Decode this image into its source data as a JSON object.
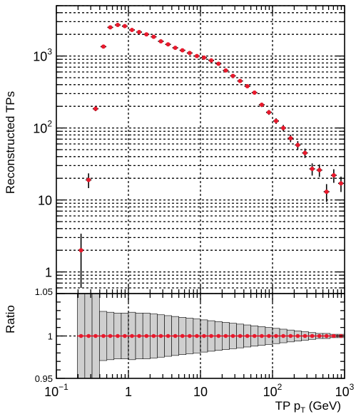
{
  "chart_data": [
    {
      "type": "scatter",
      "xlabel_main": "TP p",
      "xlabel_sub": "T",
      "xlabel_unit": " (GeV)",
      "ylabel": "Reconstructed TPs",
      "xscale": "log",
      "yscale": "log",
      "xlim": [
        0.1,
        1000
      ],
      "ylim": [
        0.5,
        5000
      ],
      "grid": true,
      "ytick_labels": [
        {
          "base": "1",
          "exp": ""
        },
        {
          "base": "10",
          "exp": ""
        },
        {
          "base": "10",
          "exp": "2"
        },
        {
          "base": "10",
          "exp": "3"
        }
      ],
      "series": [
        {
          "color": "#e8192c",
          "x": [
            0.22,
            0.28,
            0.35,
            0.45,
            0.56,
            0.71,
            0.89,
            1.12,
            1.41,
            1.78,
            2.24,
            2.82,
            3.55,
            4.47,
            5.62,
            7.08,
            8.91,
            11.2,
            14.1,
            17.8,
            22.4,
            28.2,
            35.5,
            44.7,
            56.2,
            70.8,
            89.1,
            112,
            141,
            178,
            224,
            282,
            355,
            447,
            562,
            708,
            891
          ],
          "y": [
            2,
            19,
            185,
            1350,
            2500,
            2700,
            2600,
            2300,
            2150,
            2000,
            1850,
            1600,
            1450,
            1300,
            1200,
            1100,
            1000,
            950,
            870,
            780,
            630,
            530,
            450,
            380,
            310,
            210,
            165,
            125,
            100,
            72,
            58,
            45,
            27,
            26,
            13,
            22,
            17
          ],
          "yerr": [
            1.4,
            4.4,
            13.6,
            36.7,
            50,
            52,
            51,
            48,
            46,
            45,
            43,
            40,
            38,
            36,
            35,
            33,
            32,
            31,
            29,
            28,
            25,
            23,
            21,
            19,
            18,
            14.5,
            12.8,
            11.2,
            10,
            8.5,
            7.6,
            6.7,
            5.2,
            5.1,
            3.6,
            4.7,
            4.1
          ]
        }
      ]
    },
    {
      "type": "scatter",
      "ylabel": "Ratio",
      "xscale": "log",
      "ylim": [
        0.95,
        1.05
      ],
      "ytick_labels": [
        "0.95",
        "1",
        "1.05"
      ],
      "xtick_labels": [
        {
          "base": "10",
          "exp": "−1"
        },
        {
          "base": "1",
          "exp": ""
        },
        {
          "base": "10",
          "exp": ""
        },
        {
          "base": "10",
          "exp": "2"
        },
        {
          "base": "10",
          "exp": "3"
        }
      ],
      "series": [
        {
          "color": "#e8192c",
          "x": [
            0.22,
            0.28,
            0.35,
            0.45,
            0.56,
            0.71,
            0.89,
            1.12,
            1.41,
            1.78,
            2.24,
            2.82,
            3.55,
            4.47,
            5.62,
            7.08,
            8.91,
            11.2,
            14.1,
            17.8,
            22.4,
            28.2,
            35.5,
            44.7,
            56.2,
            70.8,
            89.1,
            112,
            141,
            178,
            224,
            282,
            355,
            447,
            562,
            708,
            891
          ],
          "y": [
            1,
            1,
            1,
            1,
            1,
            1,
            1,
            1,
            1,
            1,
            1,
            1,
            1,
            1,
            1,
            1,
            1,
            1,
            1,
            1,
            1,
            1,
            1,
            1,
            1,
            1,
            1,
            1,
            1,
            1,
            1,
            1,
            1,
            1,
            1,
            1,
            1
          ],
          "band_halfwidth": [
            0.06,
            0.06,
            0.06,
            0.029,
            0.028,
            0.027,
            0.027,
            0.028,
            0.027,
            0.027,
            0.026,
            0.025,
            0.024,
            0.023,
            0.022,
            0.021,
            0.02,
            0.019,
            0.018,
            0.017,
            0.016,
            0.015,
            0.014,
            0.013,
            0.012,
            0.011,
            0.01,
            0.009,
            0.008,
            0.007,
            0.006,
            0.005,
            0.004,
            0.003,
            0.003,
            0.002,
            0.002
          ]
        }
      ]
    }
  ]
}
